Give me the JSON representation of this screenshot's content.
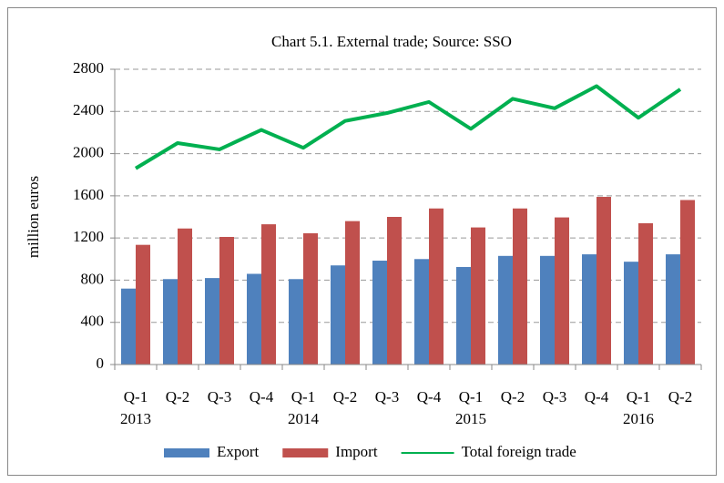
{
  "chart_data": {
    "type": "combo",
    "title": "Chart 5.1. External trade; Source:  SSO",
    "y_label": "million euros",
    "categories": [
      "Q-1",
      "Q-2",
      "Q-3",
      "Q-4",
      "Q-1",
      "Q-2",
      "Q-3",
      "Q-4",
      "Q-1",
      "Q-2",
      "Q-3",
      "Q-4",
      "Q-1",
      "Q-2"
    ],
    "year_labels": [
      "2013",
      null,
      null,
      null,
      "2014",
      null,
      null,
      null,
      "2015",
      null,
      null,
      null,
      "2016",
      null
    ],
    "series": [
      {
        "name": "Export",
        "type": "bar",
        "color": "#4f81bd",
        "values": [
          720,
          810,
          820,
          860,
          810,
          940,
          985,
          1000,
          925,
          1030,
          1030,
          1045,
          975,
          1045
        ]
      },
      {
        "name": "Import",
        "type": "bar",
        "color": "#c0504d",
        "values": [
          1135,
          1290,
          1210,
          1330,
          1245,
          1360,
          1400,
          1480,
          1300,
          1480,
          1395,
          1590,
          1340,
          1560
        ]
      },
      {
        "name": "Total foreign trade",
        "type": "line",
        "color": "#00b050",
        "values": [
          1860,
          2100,
          2040,
          2225,
          2055,
          2310,
          2385,
          2490,
          2235,
          2520,
          2430,
          2640,
          2340,
          2610
        ]
      }
    ],
    "ylim": [
      0,
      2800
    ],
    "yticks": [
      0,
      400,
      800,
      1200,
      1600,
      2000,
      2400,
      2800
    ],
    "grid": true,
    "legend": "bottom"
  }
}
